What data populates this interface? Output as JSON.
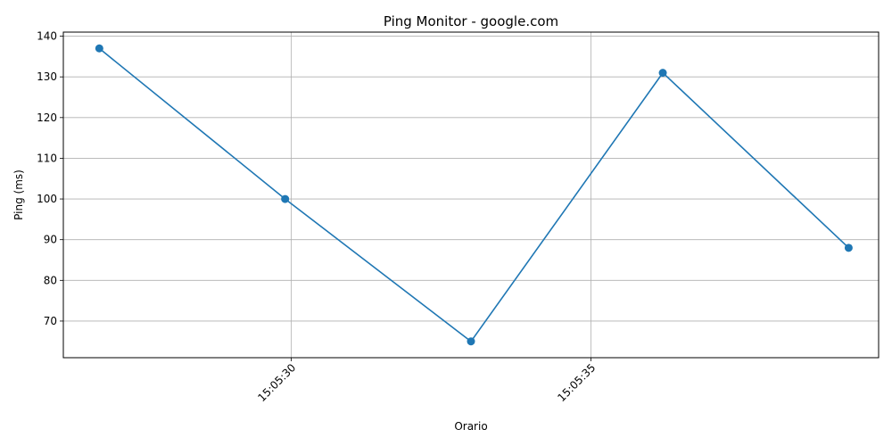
{
  "chart_data": {
    "type": "line",
    "title": "Ping Monitor - google.com",
    "xlabel": "Orario",
    "ylabel": "Ping (ms)",
    "x": [
      "15:05:26.8",
      "15:05:29.9",
      "15:05:33.0",
      "15:05:36.2",
      "15:05:39.3"
    ],
    "series": [
      {
        "values": [
          137,
          100,
          65,
          131,
          88
        ]
      }
    ],
    "xlim": [
      "15:05:26.2",
      "15:05:39.8"
    ],
    "ylim": [
      61,
      141
    ],
    "xticks": [
      "15:05:30",
      "15:05:35"
    ],
    "yticks": [
      70,
      80,
      90,
      100,
      110,
      120,
      130,
      140
    ],
    "x_tick_rotation": 45,
    "grid": true,
    "marker": "circle",
    "colors": {
      "line": "#1f77b4"
    }
  }
}
